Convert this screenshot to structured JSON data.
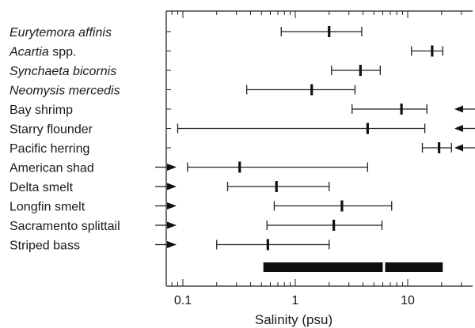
{
  "chart_data": {
    "type": "range",
    "xlabel": "Salinity (psu)",
    "xscale": "log",
    "xlim": [
      0.06,
      30
    ],
    "xticks": [
      {
        "value": 0.1,
        "label": "0.1"
      },
      {
        "value": 1,
        "label": "1"
      },
      {
        "value": 10,
        "label": "10"
      }
    ],
    "grid": false,
    "series": [
      {
        "label": "Eurytemora affinis",
        "italic": "Eurytemora affinis",
        "plain": "",
        "low": 0.75,
        "mid": 2.0,
        "high": 3.9,
        "arrow": "none"
      },
      {
        "label": "Acartia spp.",
        "italic": "Acartia",
        "plain": " spp.",
        "low": 10.8,
        "mid": 16.5,
        "high": 20.5,
        "arrow": "none"
      },
      {
        "label": "Synchaeta bicornis",
        "italic": "Synchaeta bicornis",
        "plain": "",
        "low": 2.1,
        "mid": 3.8,
        "high": 5.7,
        "arrow": "none"
      },
      {
        "label": "Neomysis mercedis",
        "italic": "Neomysis mercedis",
        "plain": "",
        "low": 0.37,
        "mid": 1.4,
        "high": 3.4,
        "arrow": "none"
      },
      {
        "label": "Bay shrimp",
        "italic": "",
        "plain": "Bay shrimp",
        "low": 3.2,
        "mid": 8.8,
        "high": 14.8,
        "arrow": "right"
      },
      {
        "label": "Starry flounder",
        "italic": "",
        "plain": "Starry flounder",
        "low": 0.09,
        "mid": 4.4,
        "high": 14.2,
        "arrow": "right"
      },
      {
        "label": "Pacific herring",
        "italic": "",
        "plain": "Pacific herring",
        "low": 13.5,
        "mid": 19.0,
        "high": 24.5,
        "arrow": "right"
      },
      {
        "label": "American shad",
        "italic": "",
        "plain": "American shad",
        "low": 0.11,
        "mid": 0.32,
        "high": 4.4,
        "arrow": "left"
      },
      {
        "label": "Delta smelt",
        "italic": "",
        "plain": "Delta smelt",
        "low": 0.25,
        "mid": 0.68,
        "high": 2.0,
        "arrow": "left"
      },
      {
        "label": "Longfin smelt",
        "italic": "",
        "plain": "Longfin smelt",
        "low": 0.65,
        "mid": 2.6,
        "high": 7.2,
        "arrow": "left"
      },
      {
        "label": "Sacramento splittail",
        "italic": "",
        "plain": "Sacramento splittail",
        "low": 0.56,
        "mid": 2.2,
        "high": 5.9,
        "arrow": "left"
      },
      {
        "label": "Striped bass",
        "italic": "",
        "plain": "Striped bass",
        "low": 0.2,
        "mid": 0.57,
        "high": 2.0,
        "arrow": "left"
      }
    ],
    "bars": [
      {
        "low": 0.52,
        "high": 6.0
      },
      {
        "low": 6.3,
        "high": 20.5
      }
    ]
  }
}
